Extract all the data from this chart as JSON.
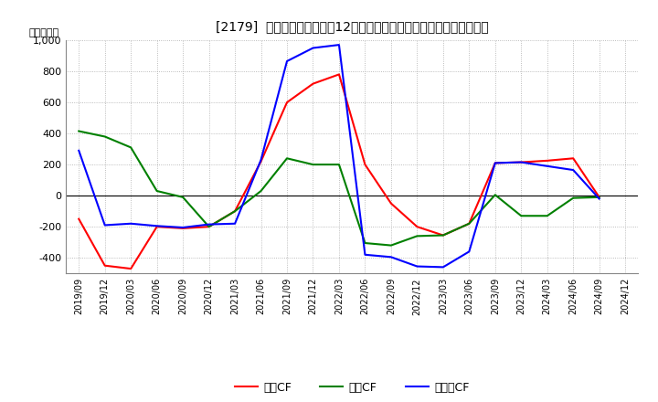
{
  "title": "[2179]  キャッシュフローの12か月移動合計の対前年同期増減額の推移",
  "ylabel": "（百万円）",
  "background_color": "#ffffff",
  "plot_bg_color": "#ffffff",
  "grid_color": "#aaaaaa",
  "x_labels": [
    "2019/09",
    "2019/12",
    "2020/03",
    "2020/06",
    "2020/09",
    "2020/12",
    "2021/03",
    "2021/06",
    "2021/09",
    "2021/12",
    "2022/03",
    "2022/06",
    "2022/09",
    "2022/12",
    "2023/03",
    "2023/06",
    "2023/09",
    "2023/12",
    "2024/03",
    "2024/06",
    "2024/09",
    "2024/12"
  ],
  "operating_cf": [
    -150,
    -450,
    -470,
    -200,
    -210,
    -200,
    -100,
    220,
    600,
    720,
    780,
    200,
    -50,
    -200,
    -255,
    -180,
    210,
    215,
    225,
    240,
    -10,
    null
  ],
  "investing_cf": [
    415,
    380,
    310,
    30,
    -10,
    -200,
    -100,
    30,
    240,
    200,
    200,
    -305,
    -320,
    -260,
    -255,
    -180,
    5,
    -130,
    -130,
    -15,
    -10,
    null
  ],
  "free_cf": [
    290,
    -190,
    -180,
    -195,
    -205,
    -185,
    -180,
    230,
    865,
    950,
    970,
    -380,
    -395,
    -455,
    -460,
    -360,
    210,
    215,
    190,
    165,
    -20,
    null
  ],
  "ylim": [
    -500,
    1000
  ],
  "operating_color": "#ff0000",
  "investing_color": "#008000",
  "free_color": "#0000ff",
  "legend_labels": [
    "営業CF",
    "投資CF",
    "フリーCF"
  ]
}
